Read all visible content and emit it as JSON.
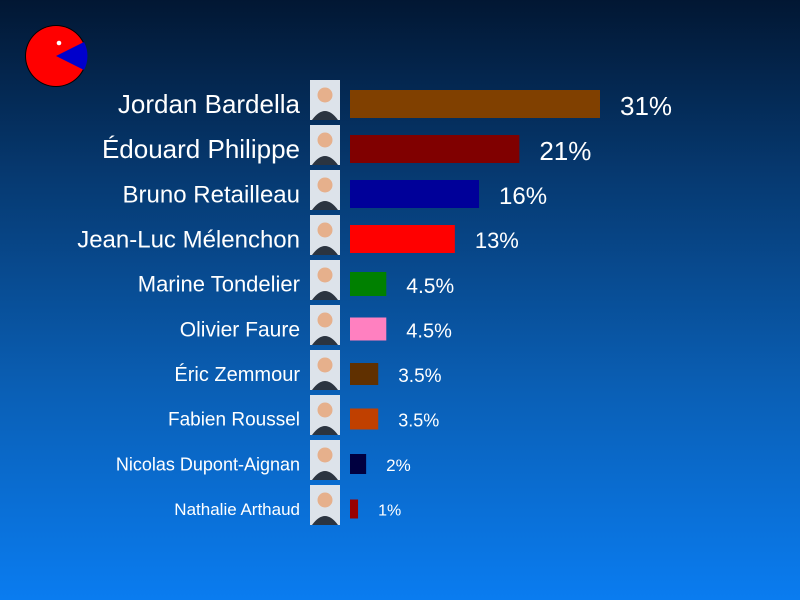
{
  "chart_data": {
    "type": "bar",
    "orientation": "horizontal",
    "title": "",
    "xlabel": "",
    "ylabel": "",
    "xlim": [
      0,
      31
    ],
    "grid": false,
    "legend": "none",
    "categories": [
      "Jordan Bardella",
      "Édouard Philippe",
      "Bruno Retailleau",
      "Jean-Luc Mélenchon",
      "Marine Tondelier",
      "Olivier Faure",
      "Éric Zemmour",
      "Fabien Roussel",
      "Nicolas Dupont-Aignan",
      "Nathalie Arthaud"
    ],
    "values": [
      31,
      21,
      16,
      13,
      4.5,
      4.5,
      3.5,
      3.5,
      2,
      1
    ],
    "labels": [
      "31%",
      "21%",
      "16%",
      "13%",
      "4.5%",
      "4.5%",
      "3.5%",
      "3.5%",
      "2%",
      "1%"
    ],
    "colors": [
      "#804000",
      "#800000",
      "#000099",
      "#ff0000",
      "#008000",
      "#ff80c0",
      "#603000",
      "#c04000",
      "#000040",
      "#990000"
    ]
  },
  "logo": {
    "icon": "pacman-pie-icon",
    "colors": {
      "main": "#ff0000",
      "slice": "#0000cc"
    }
  },
  "photo_icon": "candidate-photo-icon"
}
